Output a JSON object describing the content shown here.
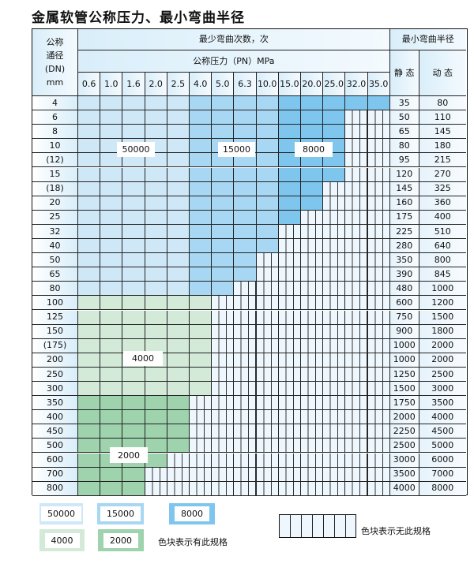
{
  "title": "金属软管公称压力、最小弯曲半径",
  "header": {
    "dn_label": "公称\n通径\n(DN)\nmm",
    "cycles_label": "最少弯曲次数，次",
    "pressure_label": "公称压力（PN）MPa",
    "radius_label": "最小弯曲半径",
    "static_label": "静 态",
    "dynamic_label": "动 态",
    "pressures": [
      "0.6",
      "1.0",
      "1.6",
      "2.0",
      "2.5",
      "4.0",
      "5.0",
      "6.3",
      "10.0",
      "15.0",
      "20.0",
      "25.0",
      "32.0",
      "35.0"
    ]
  },
  "colors": {
    "blue_50000": "#cfe8f8",
    "blue_15000": "#a7d7f3",
    "blue_8000": "#7fc6ee",
    "green_4000": "#d3ead9",
    "green_2000": "#9ed3ad",
    "unavailable": "#eef7fd"
  },
  "blue_column_cycles": [
    50000,
    50000,
    50000,
    50000,
    50000,
    15000,
    15000,
    15000,
    15000,
    8000,
    8000,
    8000,
    8000,
    8000
  ],
  "rows": [
    {
      "dn": "4",
      "static": "35",
      "dynamic": "80",
      "available": 14,
      "group": "blue"
    },
    {
      "dn": "6",
      "static": "50",
      "dynamic": "110",
      "available": 12,
      "group": "blue"
    },
    {
      "dn": "8",
      "static": "65",
      "dynamic": "145",
      "available": 12,
      "group": "blue"
    },
    {
      "dn": "10",
      "static": "80",
      "dynamic": "180",
      "available": 12,
      "group": "blue"
    },
    {
      "dn": "(12)",
      "static": "95",
      "dynamic": "215",
      "available": 12,
      "group": "blue"
    },
    {
      "dn": "15",
      "static": "120",
      "dynamic": "270",
      "available": 12,
      "group": "blue"
    },
    {
      "dn": "(18)",
      "static": "145",
      "dynamic": "325",
      "available": 11,
      "group": "blue"
    },
    {
      "dn": "20",
      "static": "160",
      "dynamic": "360",
      "available": 11,
      "group": "blue"
    },
    {
      "dn": "25",
      "static": "175",
      "dynamic": "400",
      "available": 10,
      "group": "blue"
    },
    {
      "dn": "32",
      "static": "225",
      "dynamic": "510",
      "available": 9,
      "group": "blue"
    },
    {
      "dn": "40",
      "static": "280",
      "dynamic": "640",
      "available": 9,
      "group": "blue"
    },
    {
      "dn": "50",
      "static": "350",
      "dynamic": "800",
      "available": 8,
      "group": "blue"
    },
    {
      "dn": "65",
      "static": "390",
      "dynamic": "845",
      "available": 8,
      "group": "blue"
    },
    {
      "dn": "80",
      "static": "480",
      "dynamic": "1000",
      "available": 7,
      "group": "blue"
    },
    {
      "dn": "100",
      "static": "600",
      "dynamic": "1200",
      "available": 6,
      "group": "4000"
    },
    {
      "dn": "125",
      "static": "750",
      "dynamic": "1500",
      "available": 6,
      "group": "4000"
    },
    {
      "dn": "150",
      "static": "900",
      "dynamic": "1800",
      "available": 6,
      "group": "4000"
    },
    {
      "dn": "(175)",
      "static": "1000",
      "dynamic": "2000",
      "available": 6,
      "group": "4000"
    },
    {
      "dn": "200",
      "static": "1000",
      "dynamic": "2000",
      "available": 6,
      "group": "4000"
    },
    {
      "dn": "250",
      "static": "1250",
      "dynamic": "2500",
      "available": 6,
      "group": "4000"
    },
    {
      "dn": "300",
      "static": "1500",
      "dynamic": "3000",
      "available": 6,
      "group": "4000"
    },
    {
      "dn": "350",
      "static": "1750",
      "dynamic": "3500",
      "available": 5,
      "group": "2000"
    },
    {
      "dn": "400",
      "static": "2000",
      "dynamic": "4000",
      "available": 5,
      "group": "2000"
    },
    {
      "dn": "450",
      "static": "2250",
      "dynamic": "4500",
      "available": 5,
      "group": "2000"
    },
    {
      "dn": "500",
      "static": "2500",
      "dynamic": "5000",
      "available": 5,
      "group": "2000"
    },
    {
      "dn": "600",
      "static": "3000",
      "dynamic": "6000",
      "available": 4,
      "group": "2000"
    },
    {
      "dn": "700",
      "static": "3500",
      "dynamic": "7000",
      "available": 3,
      "group": "2000"
    },
    {
      "dn": "800",
      "static": "4000",
      "dynamic": "8000",
      "available": 3,
      "group": "2000"
    }
  ],
  "region_labels": [
    "50000",
    "15000",
    "8000",
    "4000",
    "2000"
  ],
  "legend": {
    "items": [
      "50000",
      "15000",
      "8000",
      "4000",
      "2000"
    ],
    "available_text": "色块表示有此规格",
    "unavailable_text": "色块表示无此规格"
  }
}
